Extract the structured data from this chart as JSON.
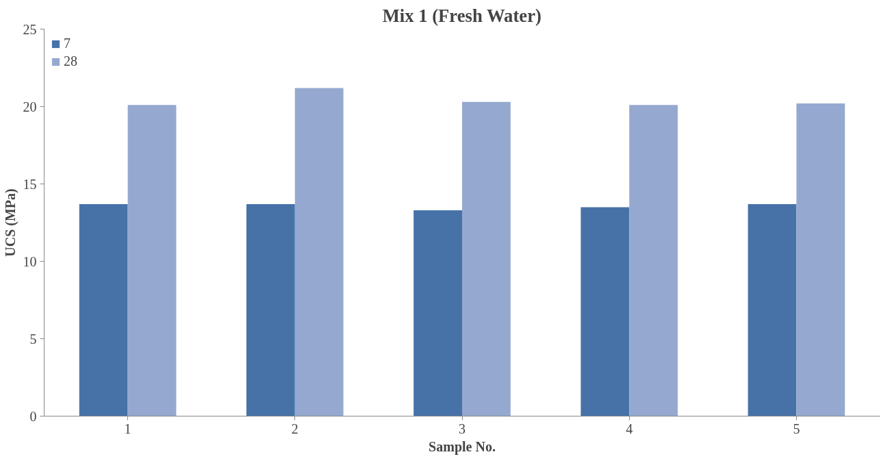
{
  "chart_data": {
    "type": "bar",
    "title": "Mix 1 (Fresh Water)",
    "xlabel": "Sample No.",
    "ylabel": "UCS (MPa)",
    "categories": [
      "1",
      "2",
      "3",
      "4",
      "5"
    ],
    "series": [
      {
        "name": "7",
        "color": "#4672a8",
        "values": [
          13.7,
          13.7,
          13.3,
          13.5,
          13.7
        ]
      },
      {
        "name": "28",
        "color": "#95a9d0",
        "values": [
          20.1,
          21.2,
          20.3,
          20.1,
          20.2
        ]
      }
    ],
    "ylim": [
      0,
      25
    ],
    "yticks": [
      0,
      5,
      10,
      15,
      20,
      25
    ],
    "grid": false,
    "legend": "top left"
  }
}
